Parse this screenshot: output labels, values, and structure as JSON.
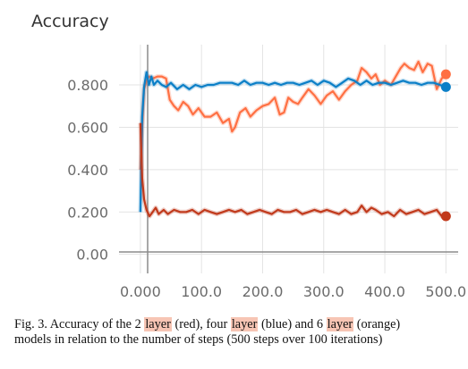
{
  "chart_data": {
    "type": "line",
    "title": "Accuracy",
    "xlabel": "",
    "ylabel": "",
    "xlim": [
      -35,
      520
    ],
    "ylim": [
      -0.09,
      0.99
    ],
    "x_ticks": [
      0,
      100,
      200,
      300,
      400,
      500
    ],
    "x_tick_labels": [
      "0.000",
      "100.0",
      "200.0",
      "300.0",
      "400.0",
      "500.0"
    ],
    "y_ticks": [
      0,
      0.2,
      0.4,
      0.6,
      0.8
    ],
    "y_tick_labels": [
      "0.00",
      "0.200",
      "0.400",
      "0.600",
      "0.800"
    ],
    "grid": true,
    "legend": "none",
    "series": [
      {
        "color": "#ff7043",
        "x": [
          0,
          3,
          6,
          10,
          14,
          20,
          28,
          35,
          42,
          48,
          55,
          62,
          70,
          78,
          86,
          95,
          105,
          115,
          125,
          135,
          145,
          150,
          155,
          163,
          172,
          180,
          190,
          200,
          210,
          220,
          228,
          235,
          242,
          250,
          258,
          265,
          275,
          285,
          295,
          305,
          315,
          325,
          335,
          345,
          355,
          362,
          370,
          378,
          385,
          392,
          400,
          410,
          418,
          426,
          432,
          440,
          448,
          455,
          462,
          470,
          477,
          485,
          493,
          500
        ],
        "y": [
          0.4,
          0.6,
          0.78,
          0.82,
          0.84,
          0.83,
          0.84,
          0.84,
          0.83,
          0.73,
          0.7,
          0.68,
          0.72,
          0.7,
          0.66,
          0.69,
          0.65,
          0.65,
          0.67,
          0.62,
          0.64,
          0.58,
          0.6,
          0.67,
          0.69,
          0.65,
          0.68,
          0.7,
          0.71,
          0.74,
          0.66,
          0.67,
          0.74,
          0.72,
          0.71,
          0.74,
          0.78,
          0.75,
          0.71,
          0.75,
          0.77,
          0.73,
          0.77,
          0.8,
          0.82,
          0.88,
          0.86,
          0.83,
          0.85,
          0.8,
          0.82,
          0.8,
          0.84,
          0.88,
          0.9,
          0.88,
          0.87,
          0.91,
          0.86,
          0.9,
          0.89,
          0.78,
          0.83,
          0.85
        ]
      },
      {
        "color": "#0b7fc7",
        "x": [
          0,
          3,
          6,
          10,
          14,
          18,
          22,
          28,
          35,
          42,
          50,
          60,
          70,
          80,
          90,
          100,
          110,
          120,
          130,
          140,
          150,
          160,
          170,
          180,
          190,
          200,
          210,
          220,
          230,
          240,
          250,
          260,
          270,
          280,
          290,
          300,
          310,
          320,
          330,
          340,
          350,
          360,
          370,
          380,
          390,
          400,
          410,
          420,
          430,
          440,
          450,
          460,
          470,
          480,
          490,
          500
        ],
        "y": [
          0.2,
          0.65,
          0.79,
          0.86,
          0.8,
          0.84,
          0.8,
          0.82,
          0.8,
          0.79,
          0.81,
          0.78,
          0.8,
          0.78,
          0.8,
          0.79,
          0.8,
          0.8,
          0.81,
          0.81,
          0.81,
          0.8,
          0.82,
          0.8,
          0.81,
          0.81,
          0.8,
          0.81,
          0.8,
          0.81,
          0.81,
          0.8,
          0.81,
          0.82,
          0.8,
          0.82,
          0.81,
          0.79,
          0.81,
          0.83,
          0.82,
          0.8,
          0.82,
          0.8,
          0.81,
          0.81,
          0.8,
          0.81,
          0.82,
          0.81,
          0.81,
          0.8,
          0.81,
          0.81,
          0.8,
          0.79
        ]
      },
      {
        "color": "#c1391b",
        "x": [
          0,
          3,
          6,
          10,
          15,
          20,
          25,
          30,
          38,
          45,
          55,
          65,
          75,
          85,
          95,
          105,
          115,
          125,
          135,
          145,
          155,
          165,
          175,
          185,
          195,
          205,
          215,
          225,
          235,
          245,
          255,
          265,
          275,
          285,
          295,
          305,
          315,
          325,
          335,
          345,
          355,
          362,
          370,
          378,
          385,
          395,
          405,
          415,
          425,
          435,
          445,
          455,
          465,
          475,
          485,
          493,
          500
        ],
        "y": [
          0.62,
          0.36,
          0.26,
          0.21,
          0.18,
          0.2,
          0.22,
          0.19,
          0.21,
          0.19,
          0.21,
          0.2,
          0.2,
          0.21,
          0.19,
          0.21,
          0.2,
          0.19,
          0.2,
          0.21,
          0.2,
          0.21,
          0.19,
          0.2,
          0.21,
          0.2,
          0.19,
          0.21,
          0.2,
          0.2,
          0.21,
          0.19,
          0.2,
          0.21,
          0.2,
          0.21,
          0.2,
          0.19,
          0.21,
          0.19,
          0.2,
          0.23,
          0.2,
          0.22,
          0.21,
          0.19,
          0.2,
          0.18,
          0.21,
          0.19,
          0.2,
          0.21,
          0.19,
          0.2,
          0.21,
          0.18,
          0.18
        ]
      }
    ]
  },
  "caption": {
    "prefix": "Fig. 3.  Accuracy of the 2 ",
    "layer1": "layer",
    "mid1": " (red), four ",
    "layer2": "layer",
    "mid2": " (blue) and 6 ",
    "layer3": "layer",
    "suffix1": " (orange)",
    "line2": "models in relation to the number of steps (500 steps over 100 iterations)"
  }
}
